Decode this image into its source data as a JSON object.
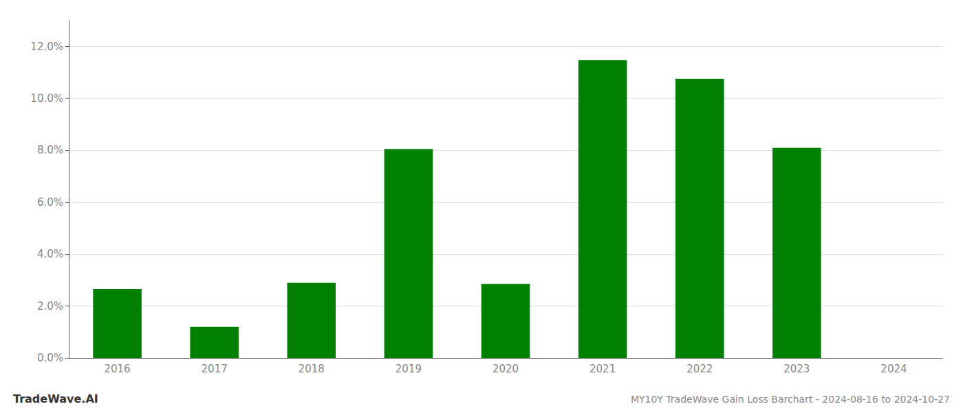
{
  "chart_data": {
    "type": "bar",
    "title": "MY10Y TradeWave Gain Loss Barchart - 2024-08-16 to 2024-10-27",
    "annotations": [
      "TradeWave.AI"
    ],
    "categories": [
      "2016",
      "2017",
      "2018",
      "2019",
      "2020",
      "2021",
      "2022",
      "2023",
      "2024"
    ],
    "values": [
      0.0265,
      0.012,
      0.029,
      0.0805,
      0.0285,
      0.1148,
      0.1075,
      0.081,
      0.0
    ],
    "color": "#008000",
    "ylim": [
      0,
      0.13
    ],
    "yticks": [
      {
        "value": 0.0,
        "label": "0.0%"
      },
      {
        "value": 0.02,
        "label": "2.0%"
      },
      {
        "value": 0.04,
        "label": "4.0%"
      },
      {
        "value": 0.06,
        "label": "6.0%"
      },
      {
        "value": 0.08,
        "label": "8.0%"
      },
      {
        "value": 0.1,
        "label": "10.0%"
      },
      {
        "value": 0.12,
        "label": "12.0%"
      }
    ],
    "grid": true
  }
}
